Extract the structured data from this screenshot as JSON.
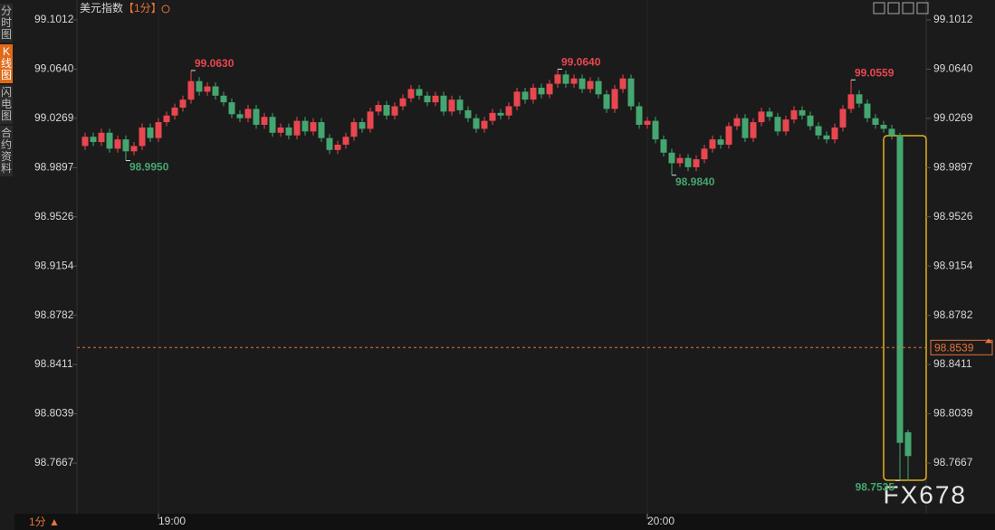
{
  "header": {
    "title": "美元指数",
    "period": "【1分】"
  },
  "sidebar": {
    "tabs": [
      "分时图",
      "K线图",
      "闪电图",
      "合约资料"
    ]
  },
  "footer": {
    "period": "1分 ▲"
  },
  "watermark": "FX678",
  "chart_data": {
    "type": "candlestick",
    "categories": [
      null,
      null,
      null,
      null,
      null,
      null,
      null,
      null,
      null,
      "19:00",
      null,
      null,
      null,
      null,
      null,
      null,
      null,
      null,
      null,
      null,
      null,
      null,
      null,
      null,
      null,
      null,
      null,
      null,
      null,
      null,
      null,
      null,
      null,
      null,
      null,
      null,
      null,
      null,
      null,
      null,
      null,
      null,
      null,
      null,
      null,
      null,
      null,
      null,
      null,
      null,
      null,
      null,
      null,
      null,
      null,
      null,
      null,
      null,
      null,
      null,
      null,
      null,
      null,
      null,
      null,
      null,
      null,
      null,
      null,
      "20:00",
      null,
      null,
      null,
      null,
      null,
      null,
      null,
      null,
      null,
      null,
      null,
      null,
      null,
      null,
      null,
      null,
      null,
      null,
      null,
      null,
      null,
      null,
      null,
      null,
      null,
      null,
      null,
      null,
      null,
      null,
      null,
      null
    ],
    "open": [
      99.006,
      99.013,
      99.009,
      99.016,
      99.004,
      99.011,
      99.002,
      99.006,
      99.02,
      99.012,
      99.024,
      99.029,
      99.035,
      99.041,
      99.055,
      99.047,
      99.051,
      99.044,
      99.039,
      99.03,
      99.027,
      99.034,
      99.022,
      99.028,
      99.016,
      99.02,
      99.014,
      99.025,
      99.017,
      99.024,
      99.012,
      99.003,
      99.007,
      99.013,
      99.024,
      99.019,
      99.032,
      99.037,
      99.029,
      99.036,
      99.042,
      99.049,
      99.044,
      99.039,
      99.044,
      99.032,
      99.041,
      99.033,
      99.027,
      99.019,
      99.025,
      99.031,
      99.029,
      99.036,
      99.047,
      99.041,
      99.05,
      99.045,
      99.053,
      99.06,
      99.053,
      99.057,
      99.049,
      99.055,
      99.045,
      99.034,
      99.049,
      99.057,
      99.036,
      99.022,
      99.025,
      99.011,
      99.001,
      98.993,
      98.997,
      98.99,
      98.996,
      99.004,
      99.011,
      99.007,
      99.021,
      99.027,
      99.012,
      99.024,
      99.032,
      99.028,
      99.017,
      99.026,
      99.033,
      99.029,
      99.021,
      99.014,
      99.011,
      99.02,
      99.034,
      99.045,
      99.038,
      99.027,
      99.022,
      99.019,
      99.014,
      98.79
    ],
    "high": [
      99.016,
      99.016,
      99.019,
      99.019,
      99.014,
      99.014,
      99.009,
      99.023,
      99.023,
      99.027,
      99.032,
      99.038,
      99.044,
      99.063,
      99.058,
      99.054,
      99.054,
      99.047,
      99.042,
      99.033,
      99.037,
      99.037,
      99.031,
      99.031,
      99.023,
      99.023,
      99.028,
      99.028,
      99.027,
      99.027,
      99.015,
      99.01,
      99.016,
      99.027,
      99.027,
      99.035,
      99.04,
      99.04,
      99.039,
      99.045,
      99.052,
      99.052,
      99.047,
      99.047,
      99.047,
      99.044,
      99.044,
      99.036,
      99.03,
      99.028,
      99.034,
      99.034,
      99.039,
      99.05,
      99.05,
      99.053,
      99.053,
      99.056,
      99.064,
      99.063,
      99.06,
      99.06,
      99.058,
      99.058,
      99.048,
      99.052,
      99.06,
      99.06,
      99.039,
      99.028,
      99.028,
      99.014,
      99.004,
      99.0,
      99.0,
      98.999,
      99.007,
      99.014,
      99.014,
      99.024,
      99.03,
      99.03,
      99.027,
      99.035,
      99.035,
      99.031,
      99.029,
      99.036,
      99.036,
      99.032,
      99.024,
      99.017,
      99.023,
      99.037,
      99.0559,
      99.048,
      99.041,
      99.03,
      99.025,
      99.022,
      99.016,
      98.792
    ],
    "low": [
      99.003,
      99.006,
      99.006,
      99.001,
      99.001,
      98.995,
      98.999,
      99.003,
      99.009,
      99.009,
      99.021,
      99.026,
      99.032,
      99.038,
      99.044,
      99.044,
      99.041,
      99.036,
      99.027,
      99.024,
      99.024,
      99.019,
      99.019,
      99.013,
      99.013,
      99.011,
      99.011,
      99.014,
      99.014,
      99.009,
      99.0,
      99.0,
      99.004,
      99.01,
      99.016,
      99.016,
      99.029,
      99.026,
      99.026,
      99.033,
      99.039,
      99.041,
      99.036,
      99.036,
      99.029,
      99.029,
      99.03,
      99.024,
      99.016,
      99.016,
      99.022,
      99.026,
      99.026,
      99.033,
      99.038,
      99.038,
      99.042,
      99.042,
      99.05,
      99.05,
      99.05,
      99.046,
      99.046,
      99.042,
      99.031,
      99.031,
      99.046,
      99.033,
      99.019,
      99.019,
      99.008,
      98.998,
      98.984,
      98.99,
      98.987,
      98.987,
      98.993,
      99.001,
      99.004,
      99.004,
      99.018,
      99.009,
      99.009,
      99.021,
      99.025,
      99.014,
      99.014,
      99.023,
      99.026,
      99.018,
      99.011,
      99.008,
      99.008,
      99.017,
      99.031,
      99.035,
      99.024,
      99.019,
      99.016,
      99.011,
      98.7535,
      98.7535
    ],
    "close": [
      99.013,
      99.009,
      99.016,
      99.004,
      99.011,
      99.002,
      99.006,
      99.02,
      99.012,
      99.024,
      99.029,
      99.035,
      99.041,
      99.055,
      99.047,
      99.051,
      99.044,
      99.039,
      99.03,
      99.027,
      99.034,
      99.022,
      99.028,
      99.016,
      99.02,
      99.014,
      99.025,
      99.017,
      99.024,
      99.012,
      99.003,
      99.007,
      99.013,
      99.024,
      99.019,
      99.032,
      99.037,
      99.029,
      99.036,
      99.042,
      99.049,
      99.044,
      99.039,
      99.044,
      99.032,
      99.041,
      99.033,
      99.027,
      99.019,
      99.025,
      99.031,
      99.029,
      99.036,
      99.047,
      99.041,
      99.05,
      99.045,
      99.053,
      99.06,
      99.053,
      99.057,
      99.049,
      99.055,
      99.045,
      99.034,
      99.049,
      99.057,
      99.036,
      99.022,
      99.025,
      99.011,
      99.001,
      98.993,
      98.997,
      98.99,
      98.996,
      99.004,
      99.011,
      99.007,
      99.021,
      99.027,
      99.012,
      99.024,
      99.032,
      99.028,
      99.017,
      99.026,
      99.033,
      99.029,
      99.021,
      99.014,
      99.011,
      99.02,
      99.034,
      99.045,
      99.038,
      99.027,
      99.022,
      99.019,
      99.014,
      98.782,
      98.772
    ],
    "up_color": "#e8474f",
    "down_color": "#45a670",
    "ylim": [
      98.7285,
      99.1162
    ],
    "yticks": [
      99.1012,
      {
        "value": 99.064,
        "label": "99.0640"
      },
      99.0269,
      98.9897,
      98.9526,
      98.9154,
      98.8782,
      98.8411,
      98.8039,
      98.7667
    ],
    "last_price": 98.8539,
    "annotations": [
      {
        "value": 99.063,
        "label": "99.0630"
      },
      {
        "value": 98.995,
        "label": "98.9950"
      },
      {
        "value": 99.064,
        "label": "99.0640"
      },
      {
        "value": 98.984,
        "label": "98.9840"
      },
      {
        "value": 99.0559,
        "label": "99.0559"
      },
      {
        "value": 98.7535,
        "label": "98.7535"
      }
    ],
    "grid": false
  }
}
